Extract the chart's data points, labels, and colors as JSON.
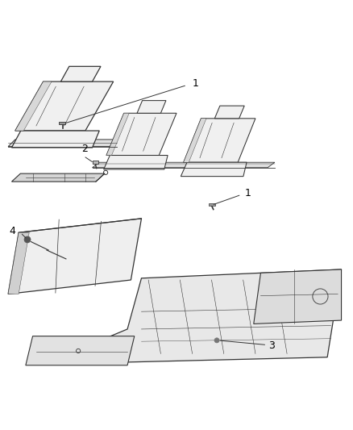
{
  "background_color": "#ffffff",
  "line_color": "#333333",
  "label_color": "#000000",
  "label_fontsize": 9,
  "fig_width": 4.38,
  "fig_height": 5.33,
  "dpi": 100
}
